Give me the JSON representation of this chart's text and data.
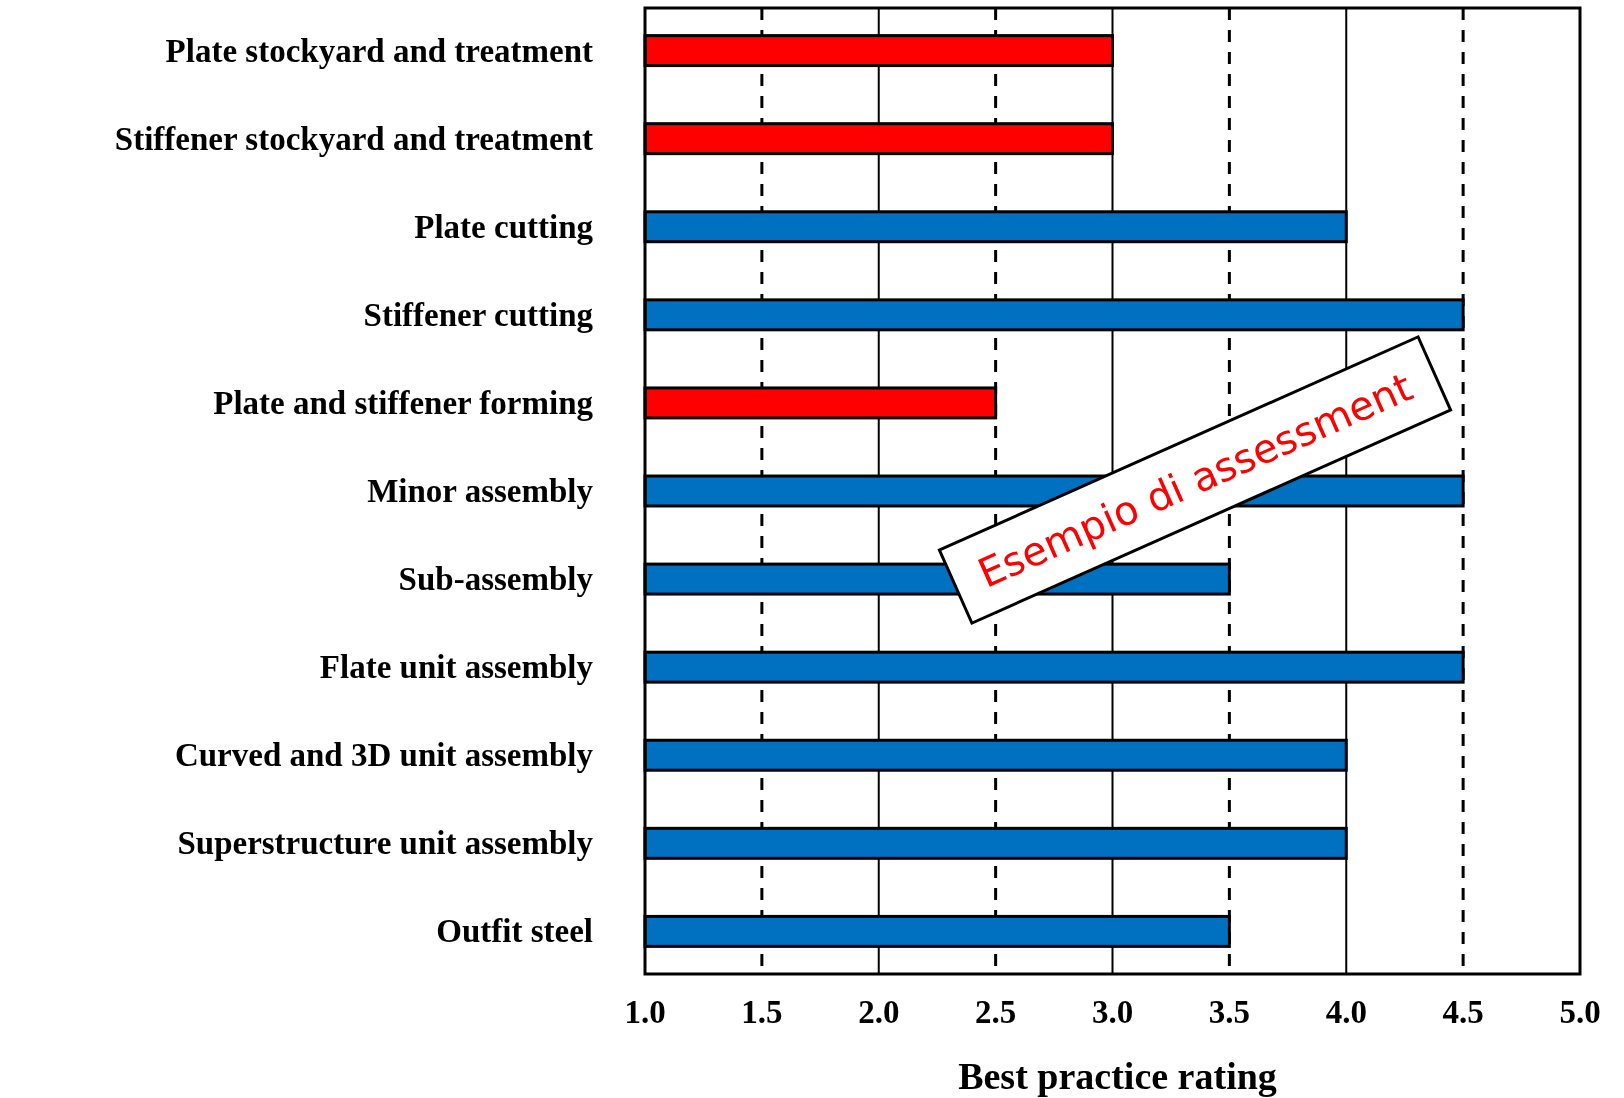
{
  "chart_data": {
    "type": "bar",
    "orientation": "horizontal",
    "categories": [
      "Plate stockyard and treatment",
      "Stiffener stockyard and treatment",
      "Plate cutting",
      "Stiffener cutting",
      "Plate and stiffener forming",
      "Minor assembly",
      "Sub-assembly",
      "Flate unit assembly",
      "Curved and 3D unit assembly",
      "Superstructure unit assembly",
      "Outfit steel"
    ],
    "values": [
      3.0,
      3.0,
      4.0,
      4.5,
      2.5,
      4.5,
      3.5,
      4.5,
      4.0,
      4.0,
      3.5
    ],
    "colors": [
      "#ff0000",
      "#ff0000",
      "#0070c0",
      "#0070c0",
      "#ff0000",
      "#0070c0",
      "#0070c0",
      "#0070c0",
      "#0070c0",
      "#0070c0",
      "#0070c0"
    ],
    "xlim": [
      1.0,
      5.0
    ],
    "xticks": [
      {
        "value": 1,
        "label": "1.0"
      },
      {
        "value": 1.5,
        "label": "1.5"
      },
      {
        "value": 2,
        "label": "2.0"
      },
      {
        "value": 2.5,
        "label": "2.5"
      },
      {
        "value": 3,
        "label": "3.0"
      },
      {
        "value": 3.5,
        "label": "3.5"
      },
      {
        "value": 4,
        "label": "4.0"
      },
      {
        "value": 4.5,
        "label": "4.5"
      },
      {
        "value": 5,
        "label": "5.0"
      }
    ],
    "xlabel": "Best practice rating",
    "grid": "x",
    "annotations": [
      "Esempio di assessment"
    ]
  }
}
